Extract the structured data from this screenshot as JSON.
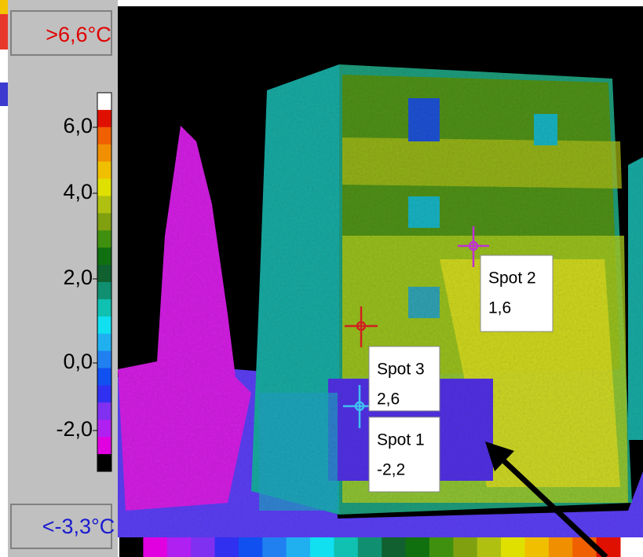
{
  "scale": {
    "max_label": ">6,6°C",
    "min_label": "<-3,3°C",
    "ticks": [
      "6,0",
      "4,0",
      "2,0",
      "0,0",
      "-2,0"
    ]
  },
  "spots": [
    {
      "label": "Spot 2",
      "value": "1,6"
    },
    {
      "label": "Spot 3",
      "value": "2,6"
    },
    {
      "label": "Spot 1",
      "value": "-2,2"
    }
  ]
}
